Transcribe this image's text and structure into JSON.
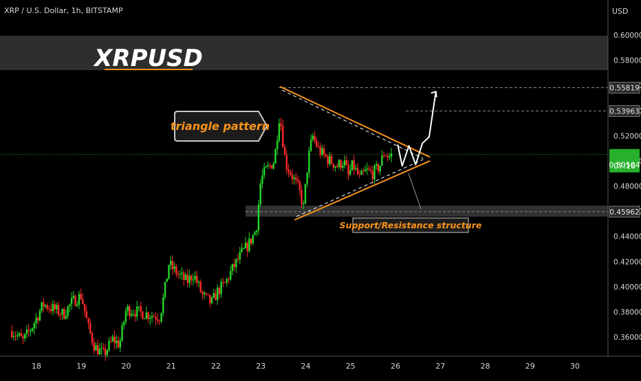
{
  "header": {
    "symbol_line": "XRP / U.S. Dollar, 1h, BITSTAMP"
  },
  "banner": {
    "title": "XRPUSD"
  },
  "annotations": {
    "triangle_label": "triangle pattern",
    "support_label": "Support/Resistance structure"
  },
  "price_scale": {
    "currency": "USD",
    "countdown": "07:16"
  },
  "colors": {
    "background": "#000000",
    "up_candle": "#26d92a",
    "down_candle": "#ff2a2a",
    "trendline": "#f7931a",
    "last_price": "#27b12d",
    "banner": "#2e2e2e",
    "support_zone": "#3a3a3a",
    "label_box_border": "#c9c9c9"
  },
  "chart_data": {
    "type": "candlestick",
    "x_tick_labels": [
      "18",
      "19",
      "20",
      "21",
      "22",
      "23",
      "24",
      "25",
      "26",
      "27",
      "28",
      "29",
      "30"
    ],
    "y_tick_labels": [
      "0.60000",
      "0.58000",
      "0.56000",
      "0.54000",
      "0.52000",
      "0.50000",
      "0.48000",
      "0.46000",
      "0.44000",
      "0.42000",
      "0.40000",
      "0.38000",
      "0.36000"
    ],
    "ylim": [
      0.344,
      0.622
    ],
    "last_price": 0.50504,
    "last_price_label": "0.50504",
    "levels": [
      {
        "price": 0.55819,
        "label": "0.55819"
      },
      {
        "price": 0.53963,
        "label": "0.53963"
      },
      {
        "price": 0.45962,
        "label": "0.45962"
      }
    ],
    "close_path": [
      [
        17.45,
        0.365
      ],
      [
        17.7,
        0.357
      ],
      [
        17.9,
        0.368
      ],
      [
        18.15,
        0.386
      ],
      [
        18.4,
        0.382
      ],
      [
        18.6,
        0.378
      ],
      [
        18.8,
        0.388
      ],
      [
        19.0,
        0.393
      ],
      [
        19.15,
        0.368
      ],
      [
        19.3,
        0.352
      ],
      [
        19.5,
        0.346
      ],
      [
        19.7,
        0.358
      ],
      [
        19.85,
        0.354
      ],
      [
        20.0,
        0.382
      ],
      [
        20.15,
        0.381
      ],
      [
        20.35,
        0.379
      ],
      [
        20.5,
        0.378
      ],
      [
        20.75,
        0.376
      ],
      [
        20.85,
        0.395
      ],
      [
        20.95,
        0.418
      ],
      [
        21.15,
        0.41
      ],
      [
        21.35,
        0.404
      ],
      [
        21.5,
        0.41
      ],
      [
        21.7,
        0.393
      ],
      [
        21.9,
        0.387
      ],
      [
        22.05,
        0.397
      ],
      [
        22.2,
        0.402
      ],
      [
        22.35,
        0.413
      ],
      [
        22.55,
        0.425
      ],
      [
        22.75,
        0.435
      ],
      [
        22.9,
        0.446
      ],
      [
        23.0,
        0.485
      ],
      [
        23.1,
        0.492
      ],
      [
        23.3,
        0.5
      ],
      [
        23.42,
        0.538
      ],
      [
        23.55,
        0.498
      ],
      [
        23.7,
        0.488
      ],
      [
        23.85,
        0.477
      ],
      [
        23.95,
        0.463
      ],
      [
        24.05,
        0.5
      ],
      [
        24.15,
        0.52
      ],
      [
        24.3,
        0.508
      ],
      [
        24.5,
        0.501
      ],
      [
        24.7,
        0.496
      ],
      [
        24.85,
        0.5
      ],
      [
        24.95,
        0.488
      ],
      [
        25.05,
        0.497
      ],
      [
        25.2,
        0.486
      ],
      [
        25.35,
        0.492
      ],
      [
        25.5,
        0.49
      ],
      [
        25.65,
        0.496
      ],
      [
        25.75,
        0.507
      ],
      [
        25.85,
        0.503
      ],
      [
        25.92,
        0.505
      ]
    ],
    "triangle": {
      "upper": [
        [
          23.43,
          0.559
        ],
        [
          26.77,
          0.503
        ]
      ],
      "lower": [
        [
          23.75,
          0.453
        ],
        [
          26.77,
          0.5
        ]
      ]
    },
    "projection": [
      [
        26.05,
        0.513
      ],
      [
        26.15,
        0.496
      ],
      [
        26.3,
        0.512
      ],
      [
        26.45,
        0.497
      ],
      [
        26.6,
        0.514
      ],
      [
        26.75,
        0.519
      ],
      [
        26.9,
        0.555
      ]
    ],
    "grid": false
  }
}
